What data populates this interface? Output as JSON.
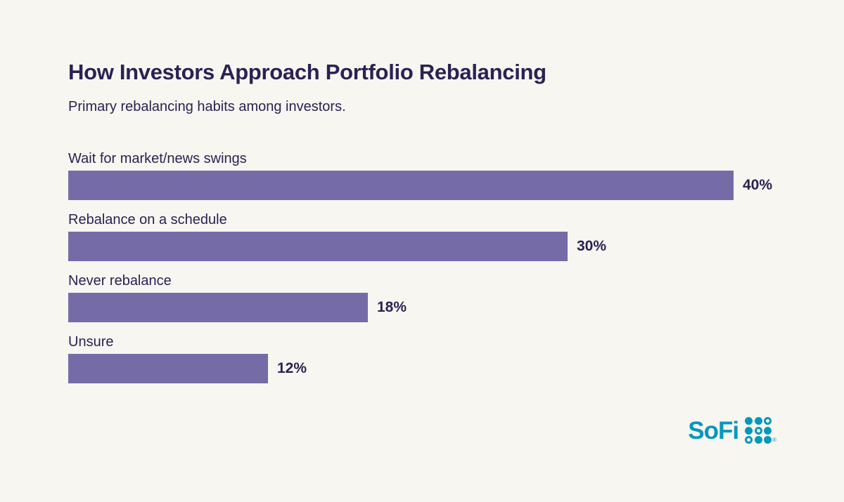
{
  "header": {
    "title": "How Investors Approach Portfolio Rebalancing",
    "subtitle": "Primary rebalancing habits among investors."
  },
  "chart_data": {
    "type": "bar",
    "orientation": "horizontal",
    "title": "How Investors Approach Portfolio Rebalancing",
    "subtitle": "Primary rebalancing habits among investors.",
    "categories": [
      "Wait for market/news swings",
      "Rebalance on a schedule",
      "Never rebalance",
      "Unsure"
    ],
    "values": [
      40,
      30,
      18,
      12
    ],
    "value_labels": [
      "40%",
      "30%",
      "18%",
      "12%"
    ],
    "xlim": [
      0,
      40
    ],
    "grid": false,
    "legend": "none",
    "bar_color": "#756CA7",
    "value_label_position": "right-of-bar"
  },
  "branding": {
    "logo_text": "SoFi",
    "registered_mark": "®",
    "logo_color": "#0698BC",
    "logo_grid_pattern": [
      "filled",
      "filled",
      "outline",
      "filled",
      "outline",
      "filled",
      "outline",
      "filled",
      "filled"
    ]
  },
  "colors": {
    "background": "#F8F6F0",
    "text_dark": "#2A2253",
    "bar_purple": "#756CA7",
    "sofi_teal": "#0698BC"
  }
}
